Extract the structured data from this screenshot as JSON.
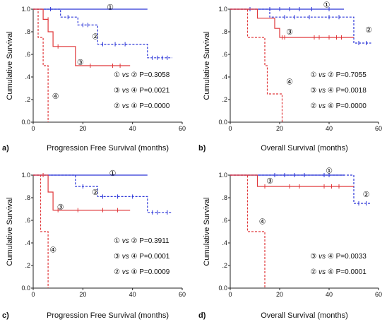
{
  "colors": {
    "blue": "#2b35d8",
    "red": "#e0373a",
    "axis": "#222222"
  },
  "chart_data": [
    {
      "panel": "a)",
      "type": "line",
      "xlabel": "Progression Free Survival (months)",
      "ylabel": "Cumulative Survival",
      "xlim": [
        0,
        60
      ],
      "ylim": [
        0,
        1
      ],
      "x_ticks": [
        "0",
        "20",
        "40",
        "60"
      ],
      "y_ticks": [
        "0.0",
        ".2",
        ".4",
        ".6",
        ".8",
        "1.0"
      ],
      "series": [
        {
          "name": "①",
          "color": "blue",
          "dash": false,
          "steps": [
            [
              0,
              1
            ],
            [
              46,
              1
            ]
          ],
          "censors": []
        },
        {
          "name": "②",
          "color": "blue",
          "dash": true,
          "steps": [
            [
              0,
              1
            ],
            [
              11,
              1
            ],
            [
              11,
              0.93
            ],
            [
              18,
              0.93
            ],
            [
              18,
              0.86
            ],
            [
              26,
              0.86
            ],
            [
              26,
              0.69
            ],
            [
              46,
              0.69
            ],
            [
              46,
              0.57
            ],
            [
              56,
              0.57
            ]
          ],
          "censors": [
            [
              7,
              1
            ],
            [
              14,
              0.93
            ],
            [
              20,
              0.86
            ],
            [
              22,
              0.86
            ],
            [
              28,
              0.69
            ],
            [
              33,
              0.69
            ],
            [
              37,
              0.69
            ],
            [
              48,
              0.57
            ],
            [
              50,
              0.57
            ],
            [
              52,
              0.57
            ],
            [
              54,
              0.57
            ]
          ]
        },
        {
          "name": "③",
          "color": "red",
          "dash": false,
          "steps": [
            [
              0,
              1
            ],
            [
              4,
              1
            ],
            [
              4,
              0.91
            ],
            [
              6,
              0.91
            ],
            [
              6,
              0.8
            ],
            [
              8,
              0.8
            ],
            [
              8,
              0.67
            ],
            [
              17,
              0.67
            ],
            [
              17,
              0.5
            ],
            [
              39,
              0.5
            ]
          ],
          "censors": [
            [
              6,
              0.91
            ],
            [
              10,
              0.67
            ],
            [
              23,
              0.5
            ],
            [
              32,
              0.5
            ],
            [
              35,
              0.5
            ]
          ]
        },
        {
          "name": "④",
          "color": "red",
          "dash": true,
          "steps": [
            [
              0,
              1
            ],
            [
              2,
              1
            ],
            [
              2,
              0.75
            ],
            [
              4,
              0.75
            ],
            [
              4,
              0.5
            ],
            [
              6,
              0.5
            ],
            [
              6,
              0
            ]
          ],
          "censors": []
        }
      ],
      "curve_labels": [
        {
          "text": "①",
          "x": 31,
          "y": 1.02
        },
        {
          "text": "②",
          "x": 25,
          "y": 0.76
        },
        {
          "text": "③",
          "x": 19,
          "y": 0.53
        },
        {
          "text": "④",
          "x": 9,
          "y": 0.23
        }
      ],
      "stats": [
        {
          "a": "①",
          "b": "②",
          "p": "P=0.3058"
        },
        {
          "a": "③",
          "b": "④",
          "p": "P=0.0021"
        },
        {
          "a": "②",
          "b": "④",
          "p": "P=0.0000"
        }
      ]
    },
    {
      "panel": "b)",
      "type": "line",
      "xlabel": "Overall Survival (months)",
      "ylabel": "Cumulative Survival",
      "xlim": [
        0,
        60
      ],
      "ylim": [
        0,
        1
      ],
      "x_ticks": [
        "0",
        "20",
        "40",
        "60"
      ],
      "y_ticks": [
        "0.0",
        ".2",
        ".4",
        ".6",
        ".8",
        "1.0"
      ],
      "series": [
        {
          "name": "①",
          "color": "blue",
          "dash": false,
          "steps": [
            [
              0,
              1
            ],
            [
              46,
              1
            ]
          ],
          "censors": [
            [
              8,
              1
            ],
            [
              16,
              1
            ],
            [
              20,
              1
            ],
            [
              24,
              1
            ],
            [
              28,
              1
            ],
            [
              33,
              1
            ],
            [
              40,
              1
            ]
          ]
        },
        {
          "name": "②",
          "color": "blue",
          "dash": true,
          "steps": [
            [
              0,
              1
            ],
            [
              16,
              1
            ],
            [
              16,
              0.93
            ],
            [
              50,
              0.93
            ],
            [
              50,
              0.7
            ],
            [
              57,
              0.7
            ]
          ],
          "censors": [
            [
              22,
              0.93
            ],
            [
              26,
              0.93
            ],
            [
              32,
              0.93
            ],
            [
              40,
              0.93
            ],
            [
              44,
              0.93
            ],
            [
              52,
              0.7
            ],
            [
              55,
              0.7
            ]
          ]
        },
        {
          "name": "③",
          "color": "red",
          "dash": false,
          "steps": [
            [
              0,
              1
            ],
            [
              11,
              1
            ],
            [
              11,
              0.92
            ],
            [
              18,
              0.92
            ],
            [
              18,
              0.83
            ],
            [
              20,
              0.83
            ],
            [
              20,
              0.75
            ],
            [
              50,
              0.75
            ]
          ],
          "censors": [
            [
              21,
              0.75
            ],
            [
              22,
              0.75
            ],
            [
              34,
              0.75
            ],
            [
              36,
              0.75
            ],
            [
              40,
              0.75
            ],
            [
              43,
              0.75
            ],
            [
              45,
              0.75
            ]
          ]
        },
        {
          "name": "④",
          "color": "red",
          "dash": true,
          "steps": [
            [
              0,
              1
            ],
            [
              7,
              1
            ],
            [
              7,
              0.75
            ],
            [
              14,
              0.75
            ],
            [
              14,
              0.5
            ],
            [
              15,
              0.5
            ],
            [
              15,
              0.25
            ],
            [
              21,
              0.25
            ],
            [
              21,
              0
            ]
          ],
          "censors": []
        }
      ],
      "curve_labels": [
        {
          "text": "①",
          "x": 39,
          "y": 1.04
        },
        {
          "text": "②",
          "x": 56,
          "y": 0.82
        },
        {
          "text": "③",
          "x": 24,
          "y": 0.8
        },
        {
          "text": "④",
          "x": 24,
          "y": 0.36
        }
      ],
      "stats": [
        {
          "a": "①",
          "b": "②",
          "p": "P=0.7055"
        },
        {
          "a": "③",
          "b": "④",
          "p": "P=0.0018"
        },
        {
          "a": "②",
          "b": "④",
          "p": "P=0.0000"
        }
      ]
    },
    {
      "panel": "c)",
      "type": "line",
      "xlabel": "Progression Free Survival (months)",
      "ylabel": "Cumulative Survival",
      "xlim": [
        0,
        60
      ],
      "ylim": [
        0,
        1
      ],
      "x_ticks": [
        "0",
        "20",
        "40",
        "60"
      ],
      "y_ticks": [
        "0.0",
        ".2",
        ".4",
        ".6",
        ".8",
        "1.0"
      ],
      "series": [
        {
          "name": "①",
          "color": "blue",
          "dash": false,
          "steps": [
            [
              0,
              1
            ],
            [
              46,
              1
            ]
          ],
          "censors": []
        },
        {
          "name": "②",
          "color": "blue",
          "dash": true,
          "steps": [
            [
              0,
              1
            ],
            [
              17,
              1
            ],
            [
              17,
              0.9
            ],
            [
              26,
              0.9
            ],
            [
              26,
              0.81
            ],
            [
              46,
              0.81
            ],
            [
              46,
              0.67
            ],
            [
              56,
              0.67
            ]
          ],
          "censors": [
            [
              20,
              0.9
            ],
            [
              28,
              0.81
            ],
            [
              34,
              0.81
            ],
            [
              40,
              0.81
            ],
            [
              48,
              0.67
            ],
            [
              50,
              0.67
            ],
            [
              54,
              0.67
            ]
          ]
        },
        {
          "name": "③",
          "color": "red",
          "dash": false,
          "steps": [
            [
              0,
              1
            ],
            [
              6,
              1
            ],
            [
              6,
              0.85
            ],
            [
              8,
              0.85
            ],
            [
              8,
              0.69
            ],
            [
              39,
              0.69
            ]
          ],
          "censors": [
            [
              4,
              1
            ],
            [
              10,
              0.69
            ],
            [
              18,
              0.69
            ],
            [
              28,
              0.69
            ],
            [
              34,
              0.69
            ]
          ]
        },
        {
          "name": "④",
          "color": "red",
          "dash": true,
          "steps": [
            [
              0,
              1
            ],
            [
              3,
              1
            ],
            [
              3,
              0.5
            ],
            [
              6,
              0.5
            ],
            [
              6,
              0
            ]
          ],
          "censors": []
        }
      ],
      "curve_labels": [
        {
          "text": "①",
          "x": 32,
          "y": 1.02
        },
        {
          "text": "②",
          "x": 25,
          "y": 0.85
        },
        {
          "text": "③",
          "x": 11,
          "y": 0.72
        },
        {
          "text": "④",
          "x": 8,
          "y": 0.34
        }
      ],
      "stats": [
        {
          "a": "①",
          "b": "②",
          "p": "P=0.3911"
        },
        {
          "a": "③",
          "b": "④",
          "p": "P=0.0001"
        },
        {
          "a": "②",
          "b": "④",
          "p": "P=0.0009"
        }
      ]
    },
    {
      "panel": "d)",
      "type": "line",
      "xlabel": "Overall Survival (months)",
      "ylabel": "Cumulative Survival",
      "xlim": [
        0,
        60
      ],
      "ylim": [
        0,
        1
      ],
      "x_ticks": [
        "0",
        "20",
        "40",
        "60"
      ],
      "y_ticks": [
        "0.0",
        ".2",
        ".4",
        ".6",
        ".8",
        "1.0"
      ],
      "series": [
        {
          "name": "①",
          "color": "blue",
          "dash": false,
          "steps": [
            [
              0,
              1
            ],
            [
              46,
              1
            ]
          ],
          "censors": [
            [
              18,
              1
            ],
            [
              22,
              1
            ],
            [
              26,
              1
            ],
            [
              30,
              1
            ],
            [
              38,
              1
            ],
            [
              40,
              1
            ]
          ]
        },
        {
          "name": "②",
          "color": "blue",
          "dash": true,
          "steps": [
            [
              0,
              1
            ],
            [
              50,
              1
            ],
            [
              50,
              0.75
            ],
            [
              57,
              0.75
            ]
          ],
          "censors": [
            [
              52,
              0.75
            ],
            [
              55,
              0.75
            ]
          ]
        },
        {
          "name": "③",
          "color": "red",
          "dash": false,
          "steps": [
            [
              0,
              1
            ],
            [
              11,
              1
            ],
            [
              11,
              0.9
            ],
            [
              50,
              0.9
            ]
          ],
          "censors": [
            [
              14,
              0.9
            ],
            [
              24,
              0.9
            ],
            [
              28,
              0.9
            ],
            [
              38,
              0.9
            ],
            [
              41,
              0.9
            ],
            [
              44,
              0.9
            ]
          ]
        },
        {
          "name": "④",
          "color": "red",
          "dash": true,
          "steps": [
            [
              0,
              1
            ],
            [
              7,
              1
            ],
            [
              7,
              0.5
            ],
            [
              14,
              0.5
            ],
            [
              14,
              0
            ]
          ],
          "censors": []
        }
      ],
      "curve_labels": [
        {
          "text": "①",
          "x": 40,
          "y": 1.04
        },
        {
          "text": "②",
          "x": 55,
          "y": 0.83
        },
        {
          "text": "③",
          "x": 16,
          "y": 0.95
        },
        {
          "text": "④",
          "x": 13,
          "y": 0.59
        }
      ],
      "stats": [
        {
          "a": "③",
          "b": "④",
          "p": "P=0.0033"
        },
        {
          "a": "②",
          "b": "④",
          "p": "P=0.0001"
        }
      ]
    }
  ]
}
